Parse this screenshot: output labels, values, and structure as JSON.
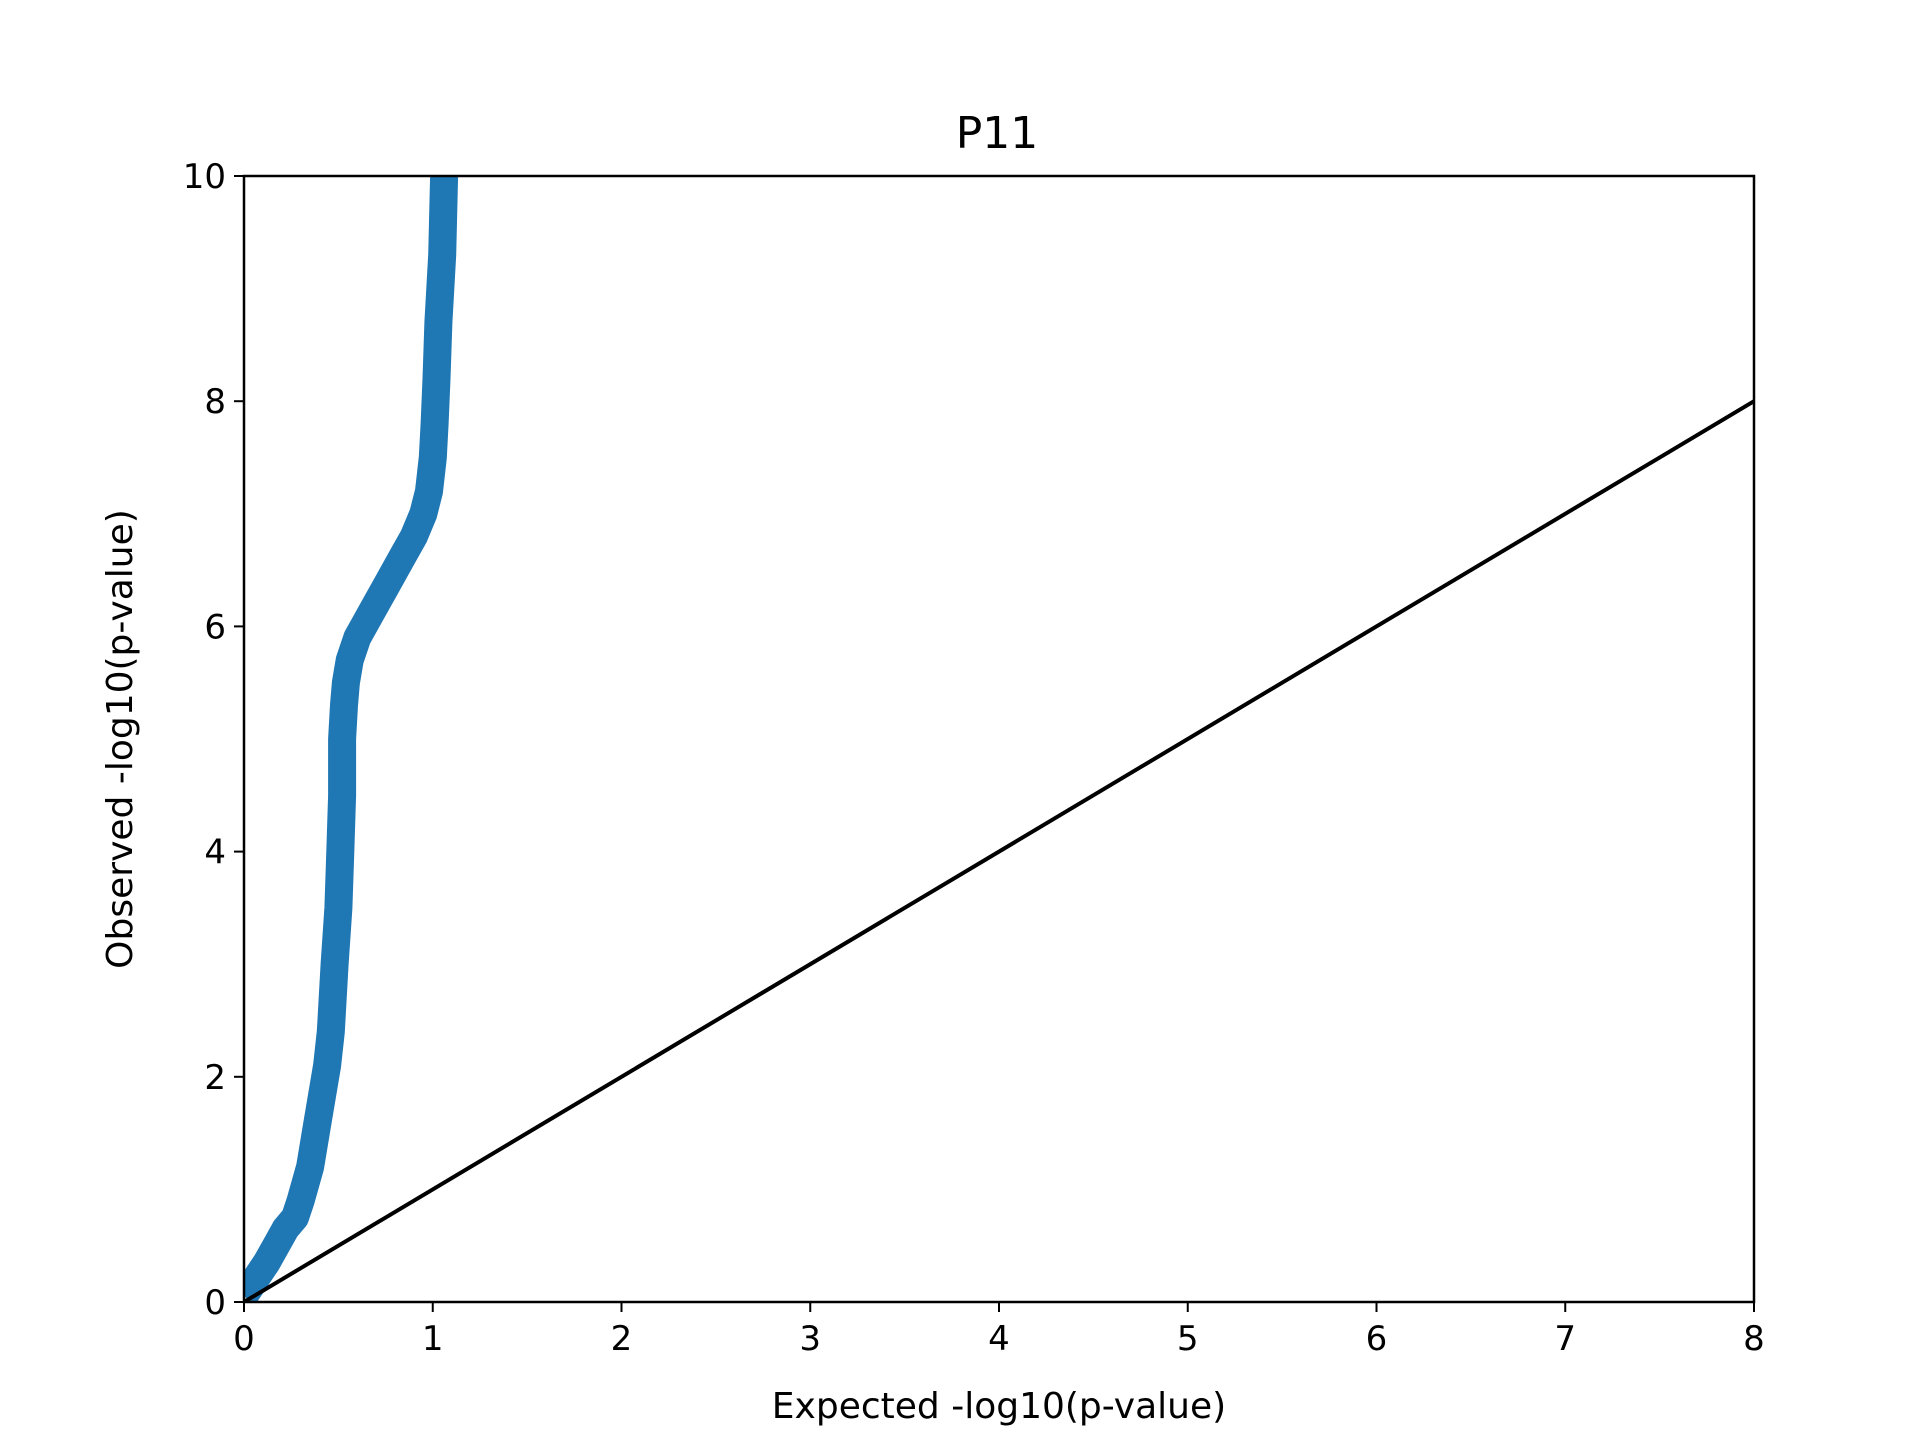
{
  "chart_data": {
    "type": "line",
    "title": "P11",
    "xlabel": "Expected -log10(p-value)",
    "ylabel": "Observed -log10(p-value)",
    "xlim": [
      0,
      8
    ],
    "ylim": [
      0,
      10
    ],
    "xticks": [
      "0",
      "1",
      "2",
      "3",
      "4",
      "5",
      "6",
      "7",
      "8"
    ],
    "yticks": [
      "0",
      "2",
      "4",
      "6",
      "8",
      "10"
    ],
    "grid": false,
    "series": [
      {
        "color": "#1f77b4",
        "x": [
          0.0,
          0.04,
          0.08,
          0.12,
          0.17,
          0.22,
          0.27,
          0.3,
          0.35,
          0.39,
          0.42,
          0.44,
          0.46,
          0.48,
          0.5,
          0.51,
          0.52,
          0.52,
          0.53,
          0.54,
          0.56,
          0.6,
          0.65,
          0.7,
          0.75,
          0.8,
          0.85,
          0.9,
          0.95,
          0.98,
          1.0,
          1.01,
          1.02,
          1.03,
          1.05,
          1.06
        ],
        "y": [
          0.05,
          0.15,
          0.25,
          0.35,
          0.5,
          0.65,
          0.75,
          0.9,
          1.2,
          1.6,
          1.9,
          2.1,
          2.4,
          3.0,
          3.5,
          4.0,
          4.5,
          5.0,
          5.3,
          5.5,
          5.7,
          5.9,
          6.05,
          6.2,
          6.35,
          6.5,
          6.65,
          6.8,
          7.0,
          7.2,
          7.5,
          7.8,
          8.2,
          8.7,
          9.3,
          10.0
        ]
      },
      {
        "color": "#000000",
        "x": [
          0,
          8
        ],
        "y": [
          0,
          8
        ]
      }
    ]
  }
}
